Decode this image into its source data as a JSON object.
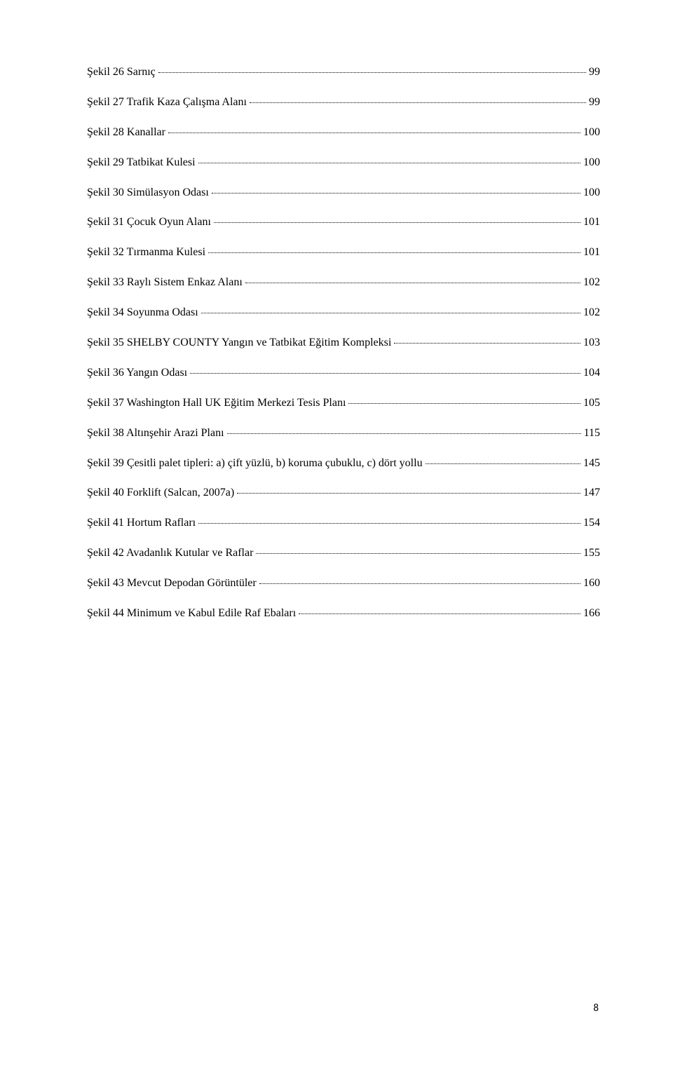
{
  "entries": [
    {
      "label": "Şekil 26 Sarnıç",
      "page": "99"
    },
    {
      "label": "Şekil 27 Trafik Kaza Çalışma Alanı",
      "page": "99"
    },
    {
      "label": "Şekil 28 Kanallar",
      "page": "100"
    },
    {
      "label": "Şekil 29 Tatbikat Kulesi",
      "page": "100"
    },
    {
      "label": "Şekil 30 Simülasyon Odası",
      "page": "100"
    },
    {
      "label": "Şekil 31 Çocuk Oyun Alanı",
      "page": "101"
    },
    {
      "label": "Şekil 32 Tırmanma Kulesi",
      "page": "101"
    },
    {
      "label": "Şekil 33 Raylı Sistem Enkaz Alanı",
      "page": "102"
    },
    {
      "label": "Şekil 34 Soyunma Odası",
      "page": "102"
    },
    {
      "label": "Şekil 35 SHELBY COUNTY Yangın ve Tatbikat Eğitim Kompleksi",
      "page": "103"
    },
    {
      "label": "Şekil 36 Yangın Odası",
      "page": "104"
    },
    {
      "label": "Şekil 37 Washington Hall UK Eğitim Merkezi Tesis Planı",
      "page": "105"
    },
    {
      "label": "Şekil 38 Altınşehir Arazi Planı",
      "page": "115"
    },
    {
      "label": "Şekil 39 Çesitli palet tipleri: a) çift yüzlü, b) koruma çubuklu, c) dört yollu",
      "page": "145"
    },
    {
      "label": "Şekil 40 Forklift (Salcan, 2007a)",
      "page": "147"
    },
    {
      "label": "Şekil 41 Hortum Rafları",
      "page": "154"
    },
    {
      "label": "Şekil 42  Avadanlık Kutular ve Raflar",
      "page": "155"
    },
    {
      "label": "Şekil 43 Mevcut Depodan Görüntüler",
      "page": "160"
    },
    {
      "label": "Şekil 44   Minimum ve Kabul Edile Raf Ebaları",
      "page": "166"
    }
  ],
  "pageNumber": "8",
  "style": {
    "font_family": "Times New Roman",
    "font_size_pt": 12,
    "text_color": "#000000",
    "background_color": "#ffffff",
    "page_number_font": "Calibri"
  }
}
